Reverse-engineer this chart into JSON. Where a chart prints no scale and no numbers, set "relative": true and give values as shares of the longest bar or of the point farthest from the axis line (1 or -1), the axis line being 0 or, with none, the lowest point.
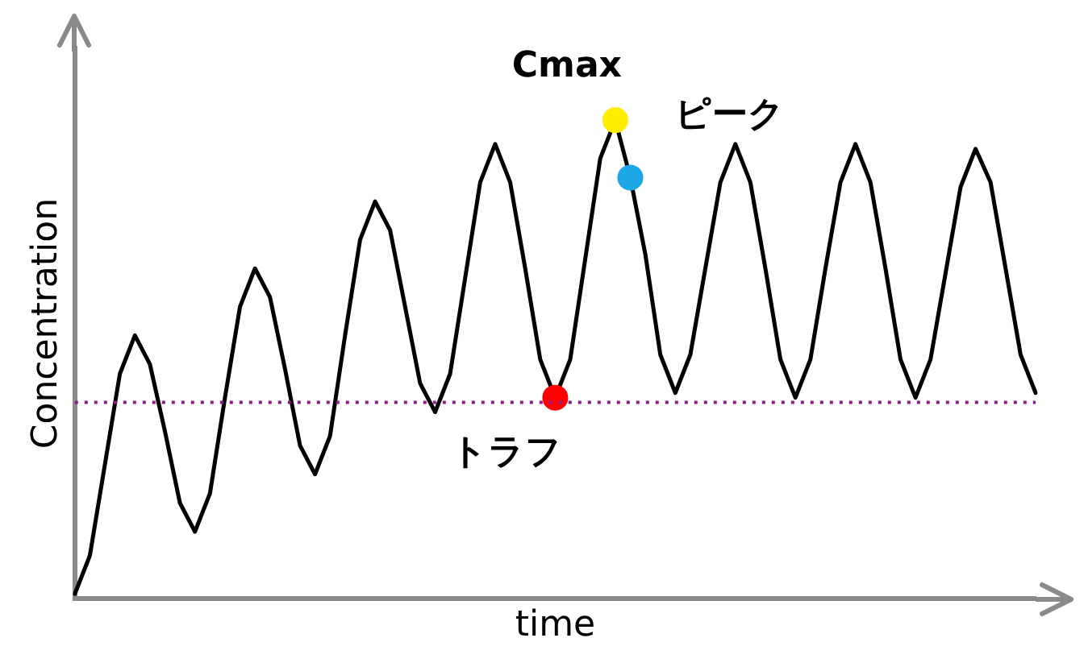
{
  "chart_data": {
    "type": "line",
    "relative": true,
    "xlabel": "time",
    "ylabel": "Concentration",
    "grid": false,
    "legend": false,
    "categories": [
      null,
      null,
      null,
      null,
      null,
      null,
      null,
      null,
      null,
      null,
      null,
      null,
      null,
      null,
      null,
      null,
      null,
      null,
      null,
      null,
      null,
      null,
      null,
      null,
      null,
      null,
      null,
      null,
      null,
      null,
      null,
      null,
      null,
      null,
      null,
      null,
      null,
      null,
      null,
      null,
      null,
      null,
      null,
      null,
      null,
      null,
      null,
      null,
      null,
      null,
      null,
      null,
      null,
      null,
      null,
      null,
      null,
      null,
      null,
      null,
      null,
      null,
      null,
      null,
      null
    ],
    "series": [
      {
        "color": "#000000",
        "line_style": "solid",
        "values": [
          0.01,
          0.09,
          0.28,
          0.47,
          0.55,
          0.49,
          0.35,
          0.2,
          0.14,
          0.22,
          0.42,
          0.61,
          0.69,
          0.63,
          0.48,
          0.32,
          0.26,
          0.34,
          0.55,
          0.75,
          0.83,
          0.77,
          0.61,
          0.45,
          0.39,
          0.47,
          0.67,
          0.87,
          0.95,
          0.87,
          0.69,
          0.5,
          0.42,
          0.5,
          0.71,
          0.92,
          1.0,
          0.88,
          0.72,
          0.51,
          0.43,
          0.51,
          0.69,
          0.87,
          0.95,
          0.87,
          0.69,
          0.5,
          0.42,
          0.5,
          0.69,
          0.87,
          0.95,
          0.87,
          0.69,
          0.5,
          0.42,
          0.5,
          0.68,
          0.86,
          0.94,
          0.87,
          0.69,
          0.51,
          0.43
        ],
        "colors": [
          null,
          null,
          null,
          null,
          null,
          null,
          null,
          null,
          null,
          null,
          null,
          null,
          null,
          null,
          null,
          null,
          null,
          null,
          null,
          null,
          null,
          null,
          null,
          null,
          null,
          null,
          null,
          null,
          null,
          null,
          null,
          null,
          "#ff0000",
          null,
          null,
          null,
          "#ffee00",
          "#1ea7e8",
          null,
          null,
          null,
          null,
          null,
          null,
          null,
          null,
          null,
          null,
          null,
          null,
          null,
          null,
          null,
          null,
          null,
          null,
          null,
          null,
          null,
          null,
          null,
          null,
          null,
          null,
          null
        ]
      }
    ],
    "ref_lines": [
      {
        "axis": "y",
        "value": 0.41,
        "color": "#8b1a8b",
        "line_style": "dotted"
      }
    ],
    "annotations": [
      "トラフ",
      "Cmax",
      "ピーク"
    ]
  }
}
